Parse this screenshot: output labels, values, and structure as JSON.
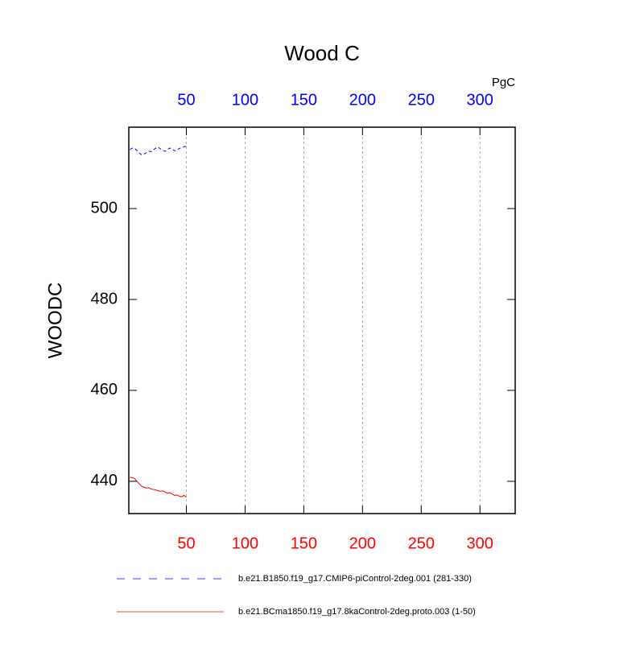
{
  "chart_data": {
    "type": "line",
    "title": "Wood C",
    "units": "PgC",
    "y_label": "WOODC",
    "xlim": [
      1,
      330
    ],
    "xticks": [
      50,
      100,
      150,
      200,
      250,
      300
    ],
    "x_tick_color": "#ff0000",
    "x2lim": [
      1,
      330
    ],
    "x2ticks": [
      50,
      100,
      150,
      200,
      250,
      300
    ],
    "x2_tick_color": "#0000ff",
    "ylim": [
      432.9,
      517.9
    ],
    "yticks": [
      440,
      460,
      480,
      500
    ],
    "grid": true,
    "x": [
      2,
      4,
      6,
      8,
      10,
      12,
      14,
      16,
      18,
      20,
      22,
      24,
      26,
      28,
      30,
      32,
      34,
      36,
      38,
      40,
      42,
      44,
      46,
      48,
      50
    ],
    "series": [
      {
        "name": "b.e21.B1850.f19_g17.CMIP6-piControl-2deg.001 (281-330)",
        "color": "#0000ff",
        "dash": true,
        "axis": "x2",
        "values": [
          513.0,
          513.3,
          513.2,
          512.8,
          512.2,
          511.8,
          512.0,
          512.3,
          512.6,
          512.5,
          512.9,
          513.3,
          513.5,
          513.1,
          512.8,
          512.6,
          513.0,
          513.3,
          513.1,
          512.7,
          512.9,
          513.2,
          513.4,
          513.6,
          513.7
        ]
      },
      {
        "name": "b.e21.BCma1850.f19_g17.8kaControl-2deg.proto.003 (1-50)",
        "color": "#ff0000",
        "dash": false,
        "values": [
          440.9,
          440.8,
          440.6,
          440.0,
          439.4,
          438.9,
          438.7,
          438.5,
          438.6,
          438.3,
          438.2,
          438.1,
          437.9,
          437.8,
          437.9,
          437.6,
          437.4,
          437.5,
          437.2,
          436.9,
          437.0,
          436.7,
          436.6,
          436.9,
          436.5
        ]
      }
    ]
  }
}
